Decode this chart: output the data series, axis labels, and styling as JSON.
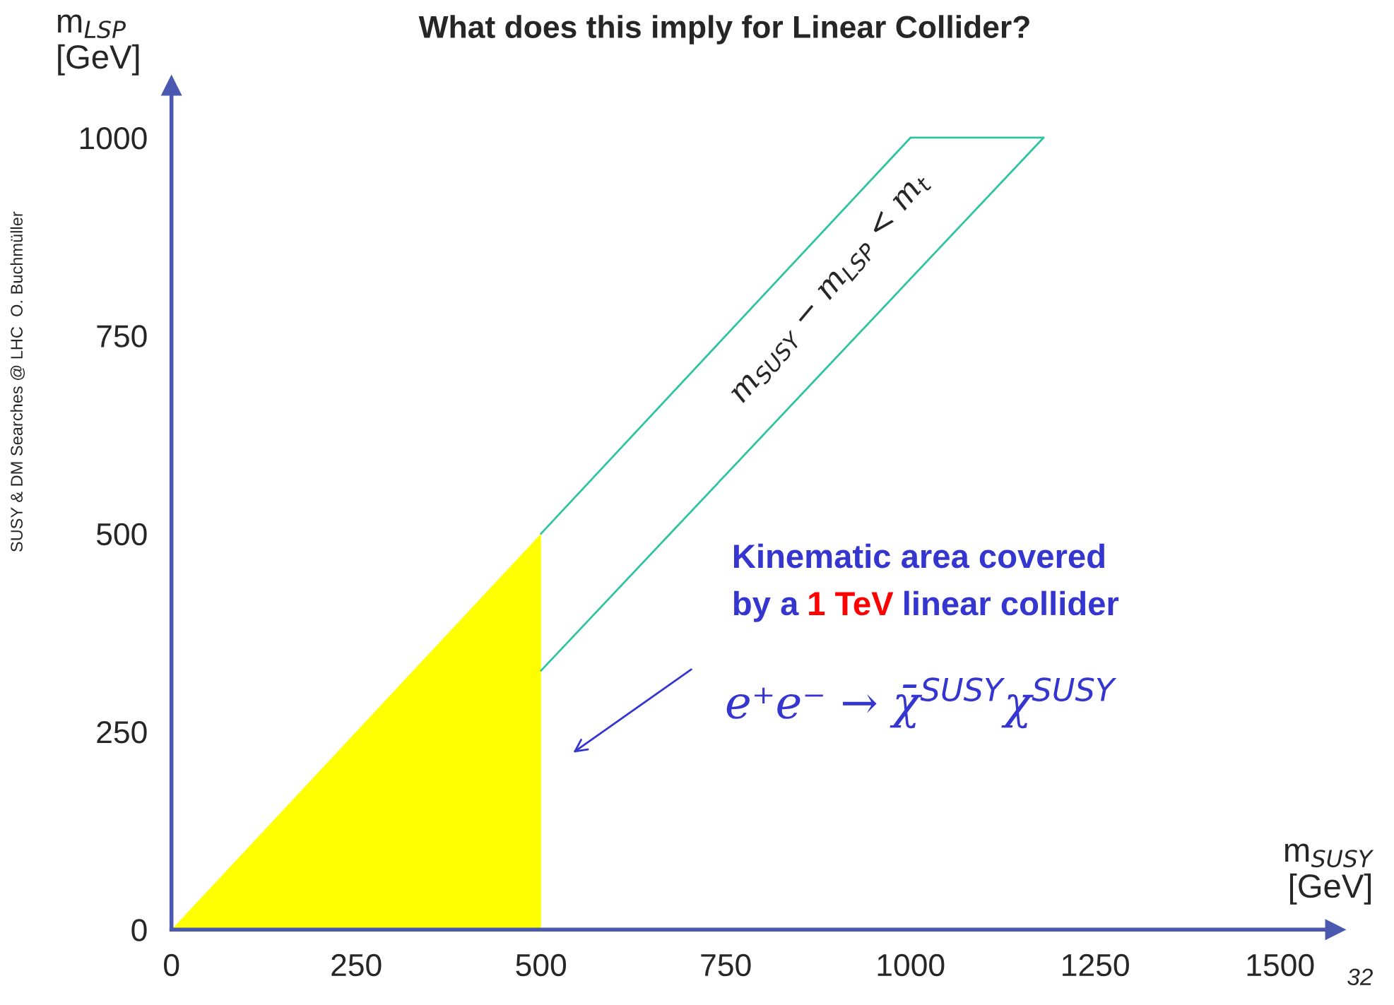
{
  "chart_data": {
    "type": "area",
    "title": "What does this imply for Linear Collider?",
    "xlabel": "m$_{SUSY}$\n[GeV]",
    "ylabel": "m$_{LSP}$\n[GeV]",
    "xlim": [
      0,
      1575
    ],
    "ylim": [
      0,
      1066
    ],
    "xticks": [
      0,
      250,
      500,
      750,
      1000,
      1250,
      1500
    ],
    "yticks": [
      0,
      250,
      500,
      750,
      1000
    ],
    "grid": false,
    "series": [
      {
        "color": "#ffff00",
        "x": [
          0,
          500
        ],
        "values": [
          0,
          500
        ]
      },
      {
        "type": "line",
        "color": "#2ec4a0",
        "x": [
          500,
          1000,
          1180
        ],
        "values": [
          500,
          1000,
          1000
        ]
      },
      {
        "type": "line",
        "color": "#2ec4a0",
        "x": [
          500,
          1180
        ],
        "values": [
          327,
          1000
        ]
      }
    ],
    "annotations": [
      "m$_{SUSY}$ − m$_{LSP}$ < m$_{t}$",
      "Kinematic area covered",
      "by a",
      "1 TeV",
      "linear collider",
      "e⁺e⁻ → χ̄$^{SUSY}$χ$^{SUSY}$",
      "SUSY & DM Searches @ LHC  O. Buchmüller",
      "32"
    ]
  }
}
